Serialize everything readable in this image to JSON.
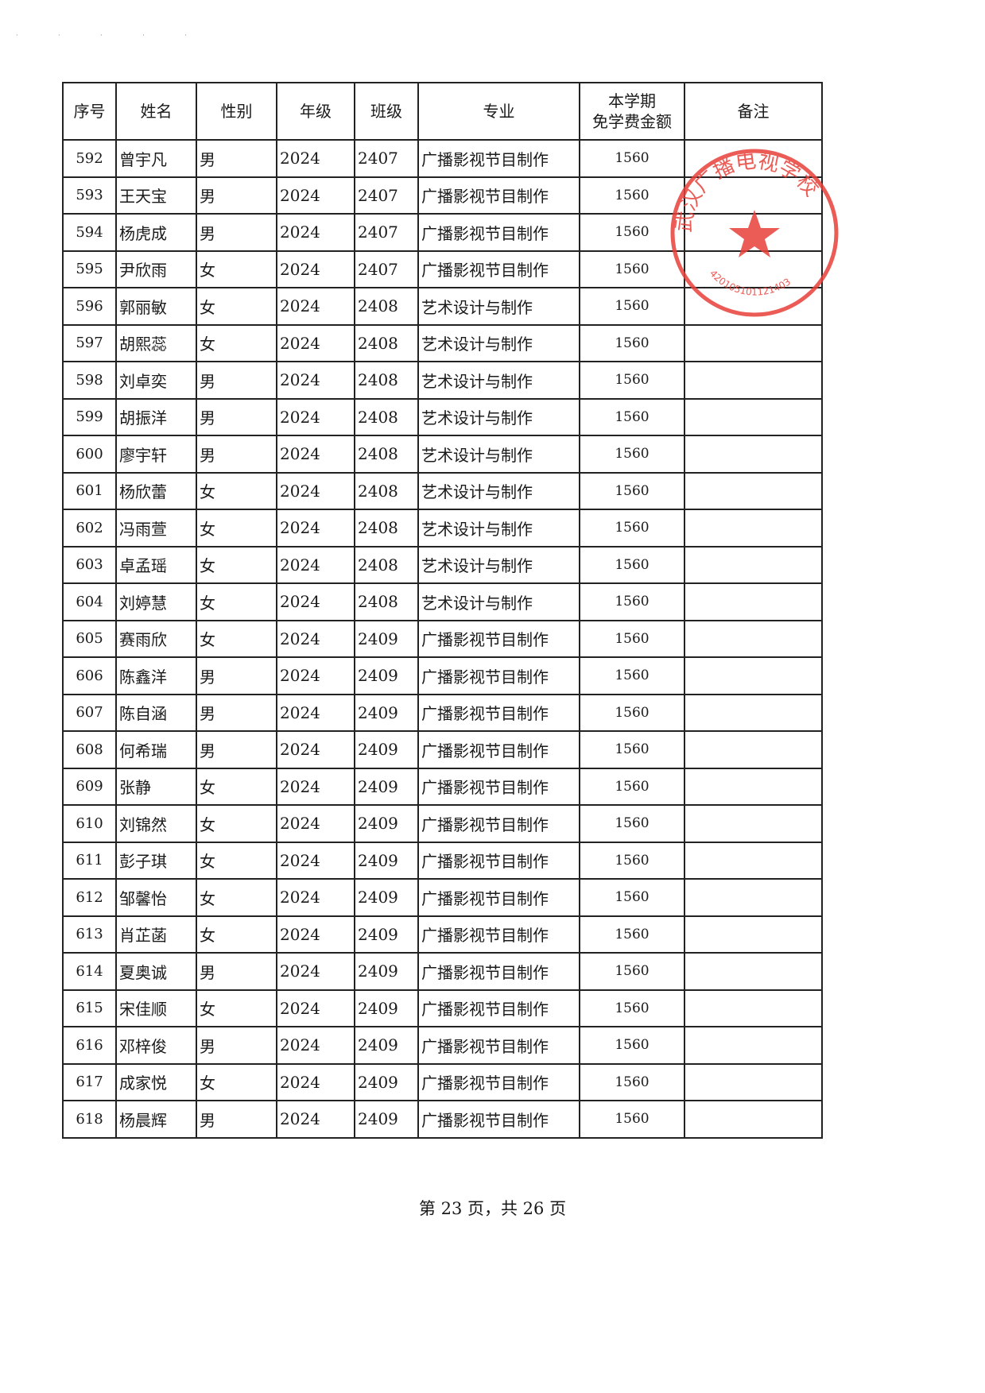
{
  "table": {
    "headers": [
      "序号",
      "姓名",
      "性别",
      "年级",
      "班级",
      "专业",
      "本学期\n免学费金额",
      "备注"
    ],
    "rows": [
      [
        "592",
        "曾宇凡",
        "男",
        "2024",
        "2407",
        "广播影视节目制作",
        "1560",
        ""
      ],
      [
        "593",
        "王天宝",
        "男",
        "2024",
        "2407",
        "广播影视节目制作",
        "1560",
        ""
      ],
      [
        "594",
        "杨虎成",
        "男",
        "2024",
        "2407",
        "广播影视节目制作",
        "1560",
        ""
      ],
      [
        "595",
        "尹欣雨",
        "女",
        "2024",
        "2407",
        "广播影视节目制作",
        "1560",
        ""
      ],
      [
        "596",
        "郭丽敏",
        "女",
        "2024",
        "2408",
        "艺术设计与制作",
        "1560",
        ""
      ],
      [
        "597",
        "胡熙蕊",
        "女",
        "2024",
        "2408",
        "艺术设计与制作",
        "1560",
        ""
      ],
      [
        "598",
        "刘卓奕",
        "男",
        "2024",
        "2408",
        "艺术设计与制作",
        "1560",
        ""
      ],
      [
        "599",
        "胡振洋",
        "男",
        "2024",
        "2408",
        "艺术设计与制作",
        "1560",
        ""
      ],
      [
        "600",
        "廖宇轩",
        "男",
        "2024",
        "2408",
        "艺术设计与制作",
        "1560",
        ""
      ],
      [
        "601",
        "杨欣蕾",
        "女",
        "2024",
        "2408",
        "艺术设计与制作",
        "1560",
        ""
      ],
      [
        "602",
        "冯雨萱",
        "女",
        "2024",
        "2408",
        "艺术设计与制作",
        "1560",
        ""
      ],
      [
        "603",
        "卓孟瑶",
        "女",
        "2024",
        "2408",
        "艺术设计与制作",
        "1560",
        ""
      ],
      [
        "604",
        "刘婷慧",
        "女",
        "2024",
        "2408",
        "艺术设计与制作",
        "1560",
        ""
      ],
      [
        "605",
        "赛雨欣",
        "女",
        "2024",
        "2409",
        "广播影视节目制作",
        "1560",
        ""
      ],
      [
        "606",
        "陈鑫洋",
        "男",
        "2024",
        "2409",
        "广播影视节目制作",
        "1560",
        ""
      ],
      [
        "607",
        "陈自涵",
        "男",
        "2024",
        "2409",
        "广播影视节目制作",
        "1560",
        ""
      ],
      [
        "608",
        "何希瑞",
        "男",
        "2024",
        "2409",
        "广播影视节目制作",
        "1560",
        ""
      ],
      [
        "609",
        "张静",
        "女",
        "2024",
        "2409",
        "广播影视节目制作",
        "1560",
        ""
      ],
      [
        "610",
        "刘锦然",
        "女",
        "2024",
        "2409",
        "广播影视节目制作",
        "1560",
        ""
      ],
      [
        "611",
        "彭子琪",
        "女",
        "2024",
        "2409",
        "广播影视节目制作",
        "1560",
        ""
      ],
      [
        "612",
        "邹馨怡",
        "女",
        "2024",
        "2409",
        "广播影视节目制作",
        "1560",
        ""
      ],
      [
        "613",
        "肖芷菡",
        "女",
        "2024",
        "2409",
        "广播影视节目制作",
        "1560",
        ""
      ],
      [
        "614",
        "夏奥诚",
        "男",
        "2024",
        "2409",
        "广播影视节目制作",
        "1560",
        ""
      ],
      [
        "615",
        "宋佳顺",
        "女",
        "2024",
        "2409",
        "广播影视节目制作",
        "1560",
        ""
      ],
      [
        "616",
        "邓梓俊",
        "男",
        "2024",
        "2409",
        "广播影视节目制作",
        "1560",
        ""
      ],
      [
        "617",
        "成家悦",
        "女",
        "2024",
        "2409",
        "广播影视节目制作",
        "1560",
        ""
      ],
      [
        "618",
        "杨晨辉",
        "男",
        "2024",
        "2409",
        "广播影视节目制作",
        "1560",
        ""
      ]
    ]
  },
  "stamp": {
    "text": "武汉广播电视学校",
    "number": "420105101121403",
    "color": "#e8403a"
  },
  "footer": "第 23 页，共 26 页"
}
